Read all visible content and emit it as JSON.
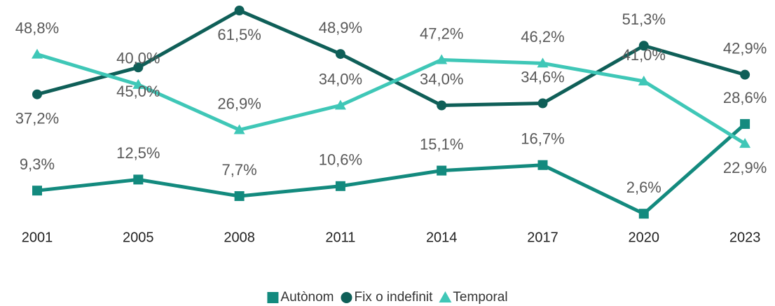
{
  "chart_data": {
    "type": "line",
    "categories": [
      "2001",
      "2005",
      "2008",
      "2011",
      "2014",
      "2017",
      "2020",
      "2023"
    ],
    "series": [
      {
        "name": "Autònom",
        "color": "#138a7e",
        "marker": "square",
        "values": [
          9.3,
          12.5,
          7.7,
          10.6,
          15.1,
          16.7,
          2.6,
          28.6
        ],
        "value_labels": [
          "9,3%",
          "12,5%",
          "7,7%",
          "10,6%",
          "15,1%",
          "16,7%",
          "2,6%",
          "28,6%"
        ]
      },
      {
        "name": "Fix o indefinit",
        "color": "#0f5f58",
        "marker": "circle",
        "values": [
          37.2,
          45.0,
          61.5,
          48.9,
          34.0,
          34.6,
          51.3,
          42.9
        ],
        "value_labels": [
          "37,2%",
          "45,0%",
          "61,5%",
          "48,9%",
          "34,0%",
          "34,6%",
          "51,3%",
          "42,9%"
        ]
      },
      {
        "name": "Temporal",
        "color": "#3fc7b7",
        "marker": "triangle",
        "values": [
          48.8,
          40.0,
          26.9,
          34.0,
          47.2,
          46.2,
          41.0,
          22.9
        ],
        "value_labels": [
          "48,8%",
          "40,0%",
          "26,9%",
          "34,0%",
          "47,2%",
          "46,2%",
          "41,0%",
          "22,9%"
        ]
      }
    ],
    "legend": "bottom"
  }
}
